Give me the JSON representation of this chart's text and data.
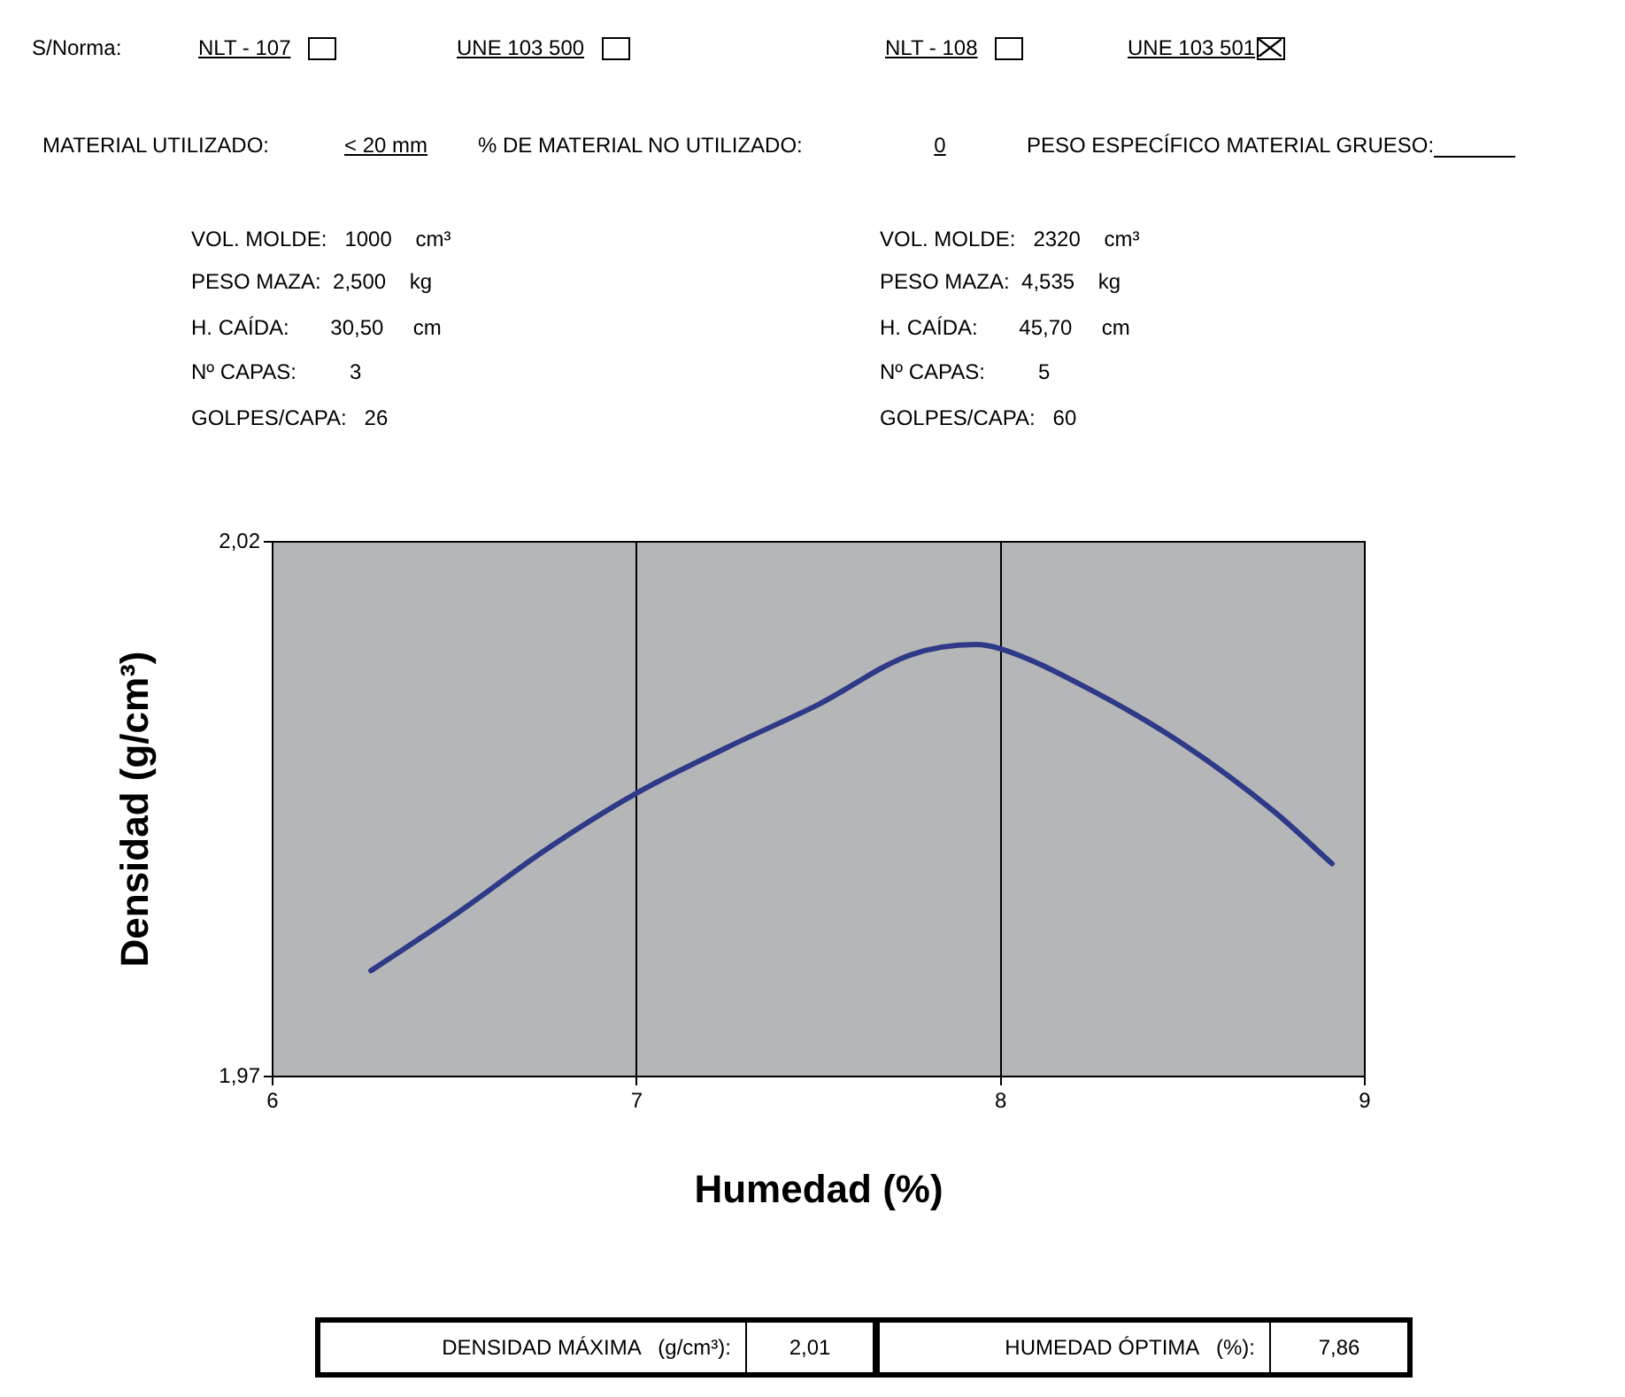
{
  "chart_data": {
    "type": "line",
    "xlabel": "Humedad (%)",
    "ylabel": "Densidad (g/cm³)",
    "x": [
      6.27,
      6.5,
      6.75,
      7,
      7.25,
      7.5,
      7.75,
      7.93,
      8,
      8.25,
      8.5,
      8.75,
      8.91
    ],
    "series": [
      {
        "color": "#2e3a87",
        "values": [
          1.9799,
          1.9851,
          1.9912,
          1.9965,
          2.0008,
          2.0048,
          2.0094,
          2.0104,
          2.01,
          2.0061,
          2.0011,
          1.9948,
          1.9899
        ]
      }
    ],
    "xlim": [
      6,
      9
    ],
    "xticks": [
      6,
      7,
      8,
      9
    ],
    "ylim": [
      1.97,
      2.02
    ],
    "yticks": [
      {
        "value": 1.97,
        "label": "1,97"
      },
      {
        "value": 2.02,
        "label": "2,02"
      }
    ],
    "grid": "x",
    "legend": false,
    "marker": "none",
    "line_style": "solid",
    "annotations": [
      "S/Norma:",
      "NLT - 107",
      "UNE 103 500",
      "NLT - 108",
      "UNE 103 501",
      "MATERIAL UTILIZADO:",
      "< 20 mm",
      "% DE MATERIAL NO UTILIZADO:",
      "0",
      "PESO ESPECÍFICO MATERIAL GRUESO:",
      "VOL. MOLDE:   1000    cm³",
      "PESO MAZA:  2,500    kg",
      "H. CAÍDA:       30,50     cm",
      "Nº CAPAS:         3",
      "GOLPES/CAPA:   26",
      "VOL. MOLDE:   2320    cm³",
      "PESO MAZA:  4,535    kg",
      "H. CAÍDA:       45,70     cm",
      "Nº CAPAS:         5",
      "GOLPES/CAPA:   60",
      "DENSIDAD MÁXIMA   (g/cm³):",
      "2,01",
      "HUMEDAD ÓPTIMA   (%):",
      "7,86"
    ]
  }
}
